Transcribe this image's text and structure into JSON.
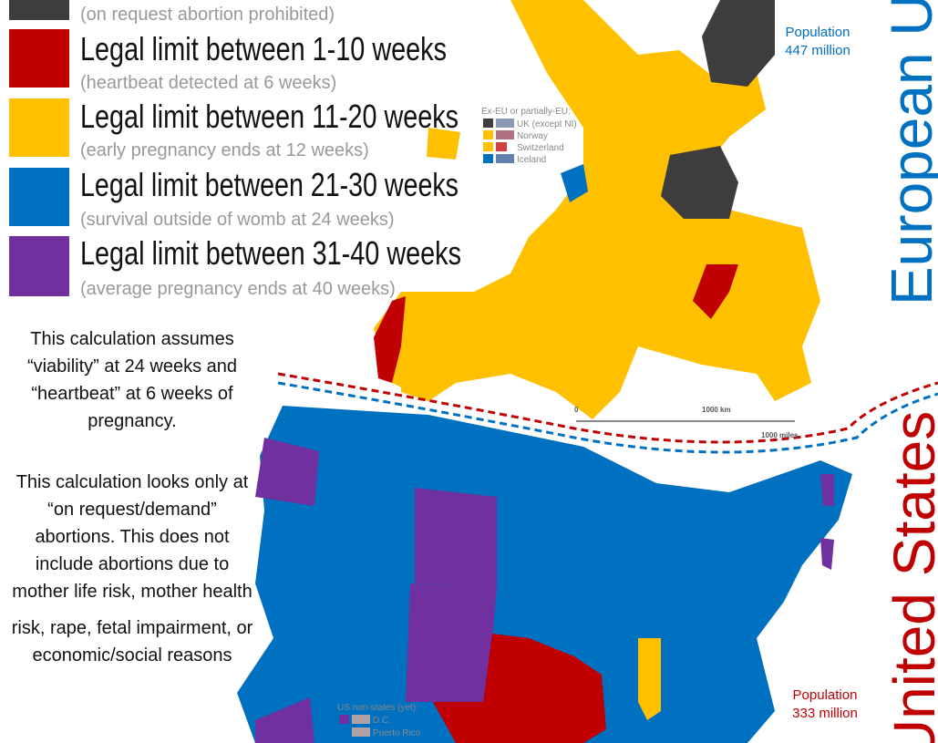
{
  "legend": [
    {
      "subtitle": "(on request abortion prohibited)"
    },
    {
      "title": "Legal limit between 1-10 weeks",
      "subtitle": "(heartbeat detected at 6 weeks)"
    },
    {
      "title": "Legal limit between 11-20 weeks",
      "subtitle": "(early pregnancy ends at 12 weeks)"
    },
    {
      "title": "Legal limit between 21-30 weeks",
      "subtitle": "(survival outside of womb at 24 weeks)"
    },
    {
      "title": "Legal limit between 31-40 weeks",
      "subtitle": "(average pregnancy ends at 40 weeks)"
    }
  ],
  "notes": [
    [
      "This calculation assumes",
      "“viability” at 24 weeks and",
      "“heartbeat” at 6 weeks of",
      "pregnancy."
    ],
    [
      "This calculation looks only at",
      "“on request/demand”",
      "abortions. This does not",
      "include abortions due to",
      "mother life risk, mother health",
      "risk, rape, fetal impairment, or",
      "economic/social reasons"
    ]
  ],
  "eu": {
    "title": "European Union",
    "population": [
      "Population",
      "447 million"
    ]
  },
  "us": {
    "title": "United States",
    "population": [
      "Population",
      "333 million"
    ]
  },
  "ex_eu": {
    "heading": "Ex-EU or partially-EU:",
    "items": [
      "UK (except NI)",
      "Norway",
      "Switzerland",
      "Iceland"
    ]
  },
  "us_non_states": {
    "heading": "US non-states (yet):",
    "items": [
      "D.C.",
      "Puerto Rico"
    ]
  },
  "scale": {
    "zero": "0",
    "km": "1000 km",
    "miles": "1000 miles"
  }
}
